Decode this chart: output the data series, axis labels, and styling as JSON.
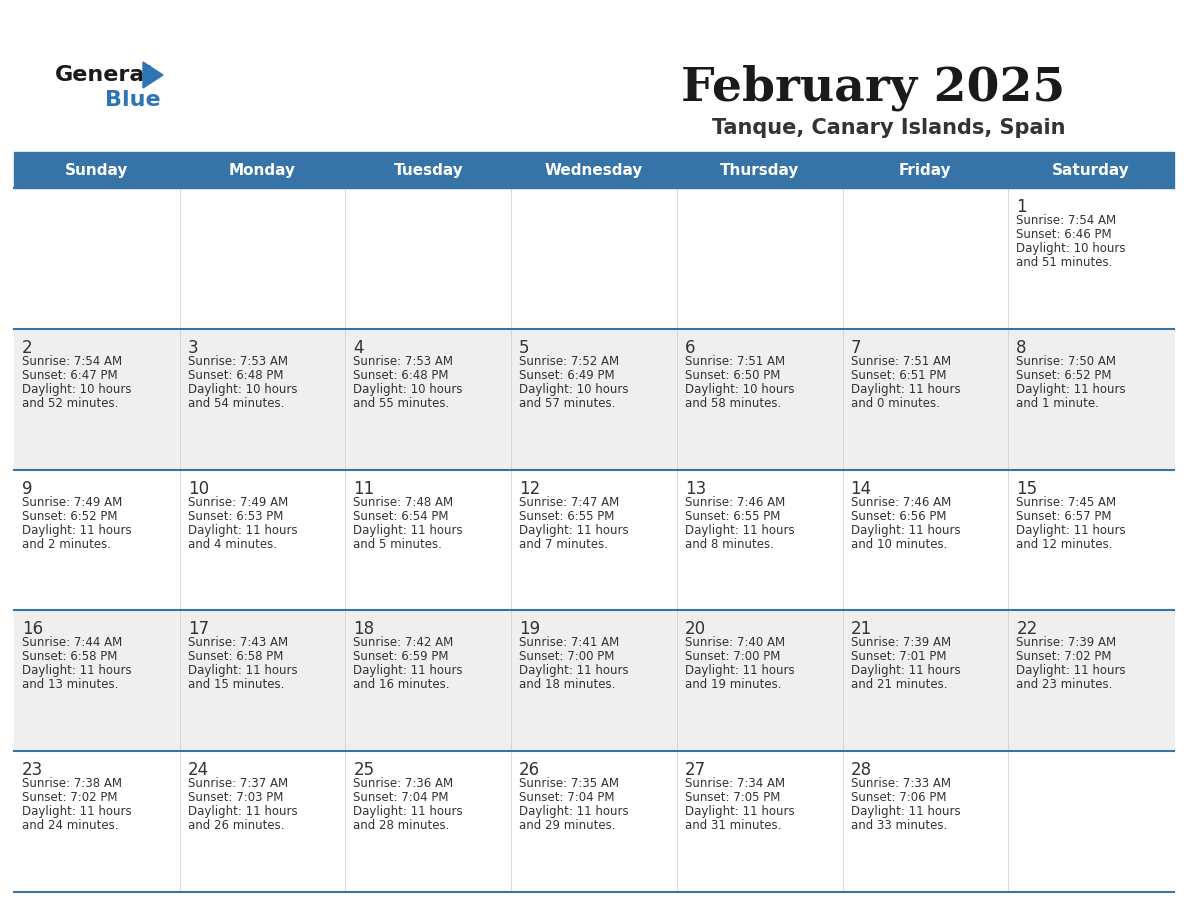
{
  "title": "February 2025",
  "subtitle": "Tanque, Canary Islands, Spain",
  "header_color": "#3674a8",
  "header_text_color": "#FFFFFF",
  "day_names": [
    "Sunday",
    "Monday",
    "Tuesday",
    "Wednesday",
    "Thursday",
    "Friday",
    "Saturday"
  ],
  "bg_color": "#FFFFFF",
  "cell_bg_alt": "#EFEFEF",
  "separator_color": "#3674a8",
  "text_color": "#333333",
  "logo_general_color": "#1a1a1a",
  "logo_blue_color": "#2E75B6",
  "logo_triangle_color": "#2E75B6",
  "days": [
    {
      "day": 1,
      "col": 6,
      "row": 0,
      "sunrise": "7:54 AM",
      "sunset": "6:46 PM",
      "daylight": "10 hours and 51 minutes."
    },
    {
      "day": 2,
      "col": 0,
      "row": 1,
      "sunrise": "7:54 AM",
      "sunset": "6:47 PM",
      "daylight": "10 hours and 52 minutes."
    },
    {
      "day": 3,
      "col": 1,
      "row": 1,
      "sunrise": "7:53 AM",
      "sunset": "6:48 PM",
      "daylight": "10 hours and 54 minutes."
    },
    {
      "day": 4,
      "col": 2,
      "row": 1,
      "sunrise": "7:53 AM",
      "sunset": "6:48 PM",
      "daylight": "10 hours and 55 minutes."
    },
    {
      "day": 5,
      "col": 3,
      "row": 1,
      "sunrise": "7:52 AM",
      "sunset": "6:49 PM",
      "daylight": "10 hours and 57 minutes."
    },
    {
      "day": 6,
      "col": 4,
      "row": 1,
      "sunrise": "7:51 AM",
      "sunset": "6:50 PM",
      "daylight": "10 hours and 58 minutes."
    },
    {
      "day": 7,
      "col": 5,
      "row": 1,
      "sunrise": "7:51 AM",
      "sunset": "6:51 PM",
      "daylight": "11 hours and 0 minutes."
    },
    {
      "day": 8,
      "col": 6,
      "row": 1,
      "sunrise": "7:50 AM",
      "sunset": "6:52 PM",
      "daylight": "11 hours and 1 minute."
    },
    {
      "day": 9,
      "col": 0,
      "row": 2,
      "sunrise": "7:49 AM",
      "sunset": "6:52 PM",
      "daylight": "11 hours and 2 minutes."
    },
    {
      "day": 10,
      "col": 1,
      "row": 2,
      "sunrise": "7:49 AM",
      "sunset": "6:53 PM",
      "daylight": "11 hours and 4 minutes."
    },
    {
      "day": 11,
      "col": 2,
      "row": 2,
      "sunrise": "7:48 AM",
      "sunset": "6:54 PM",
      "daylight": "11 hours and 5 minutes."
    },
    {
      "day": 12,
      "col": 3,
      "row": 2,
      "sunrise": "7:47 AM",
      "sunset": "6:55 PM",
      "daylight": "11 hours and 7 minutes."
    },
    {
      "day": 13,
      "col": 4,
      "row": 2,
      "sunrise": "7:46 AM",
      "sunset": "6:55 PM",
      "daylight": "11 hours and 8 minutes."
    },
    {
      "day": 14,
      "col": 5,
      "row": 2,
      "sunrise": "7:46 AM",
      "sunset": "6:56 PM",
      "daylight": "11 hours and 10 minutes."
    },
    {
      "day": 15,
      "col": 6,
      "row": 2,
      "sunrise": "7:45 AM",
      "sunset": "6:57 PM",
      "daylight": "11 hours and 12 minutes."
    },
    {
      "day": 16,
      "col": 0,
      "row": 3,
      "sunrise": "7:44 AM",
      "sunset": "6:58 PM",
      "daylight": "11 hours and 13 minutes."
    },
    {
      "day": 17,
      "col": 1,
      "row": 3,
      "sunrise": "7:43 AM",
      "sunset": "6:58 PM",
      "daylight": "11 hours and 15 minutes."
    },
    {
      "day": 18,
      "col": 2,
      "row": 3,
      "sunrise": "7:42 AM",
      "sunset": "6:59 PM",
      "daylight": "11 hours and 16 minutes."
    },
    {
      "day": 19,
      "col": 3,
      "row": 3,
      "sunrise": "7:41 AM",
      "sunset": "7:00 PM",
      "daylight": "11 hours and 18 minutes."
    },
    {
      "day": 20,
      "col": 4,
      "row": 3,
      "sunrise": "7:40 AM",
      "sunset": "7:00 PM",
      "daylight": "11 hours and 19 minutes."
    },
    {
      "day": 21,
      "col": 5,
      "row": 3,
      "sunrise": "7:39 AM",
      "sunset": "7:01 PM",
      "daylight": "11 hours and 21 minutes."
    },
    {
      "day": 22,
      "col": 6,
      "row": 3,
      "sunrise": "7:39 AM",
      "sunset": "7:02 PM",
      "daylight": "11 hours and 23 minutes."
    },
    {
      "day": 23,
      "col": 0,
      "row": 4,
      "sunrise": "7:38 AM",
      "sunset": "7:02 PM",
      "daylight": "11 hours and 24 minutes."
    },
    {
      "day": 24,
      "col": 1,
      "row": 4,
      "sunrise": "7:37 AM",
      "sunset": "7:03 PM",
      "daylight": "11 hours and 26 minutes."
    },
    {
      "day": 25,
      "col": 2,
      "row": 4,
      "sunrise": "7:36 AM",
      "sunset": "7:04 PM",
      "daylight": "11 hours and 28 minutes."
    },
    {
      "day": 26,
      "col": 3,
      "row": 4,
      "sunrise": "7:35 AM",
      "sunset": "7:04 PM",
      "daylight": "11 hours and 29 minutes."
    },
    {
      "day": 27,
      "col": 4,
      "row": 4,
      "sunrise": "7:34 AM",
      "sunset": "7:05 PM",
      "daylight": "11 hours and 31 minutes."
    },
    {
      "day": 28,
      "col": 5,
      "row": 4,
      "sunrise": "7:33 AM",
      "sunset": "7:06 PM",
      "daylight": "11 hours and 33 minutes."
    }
  ]
}
